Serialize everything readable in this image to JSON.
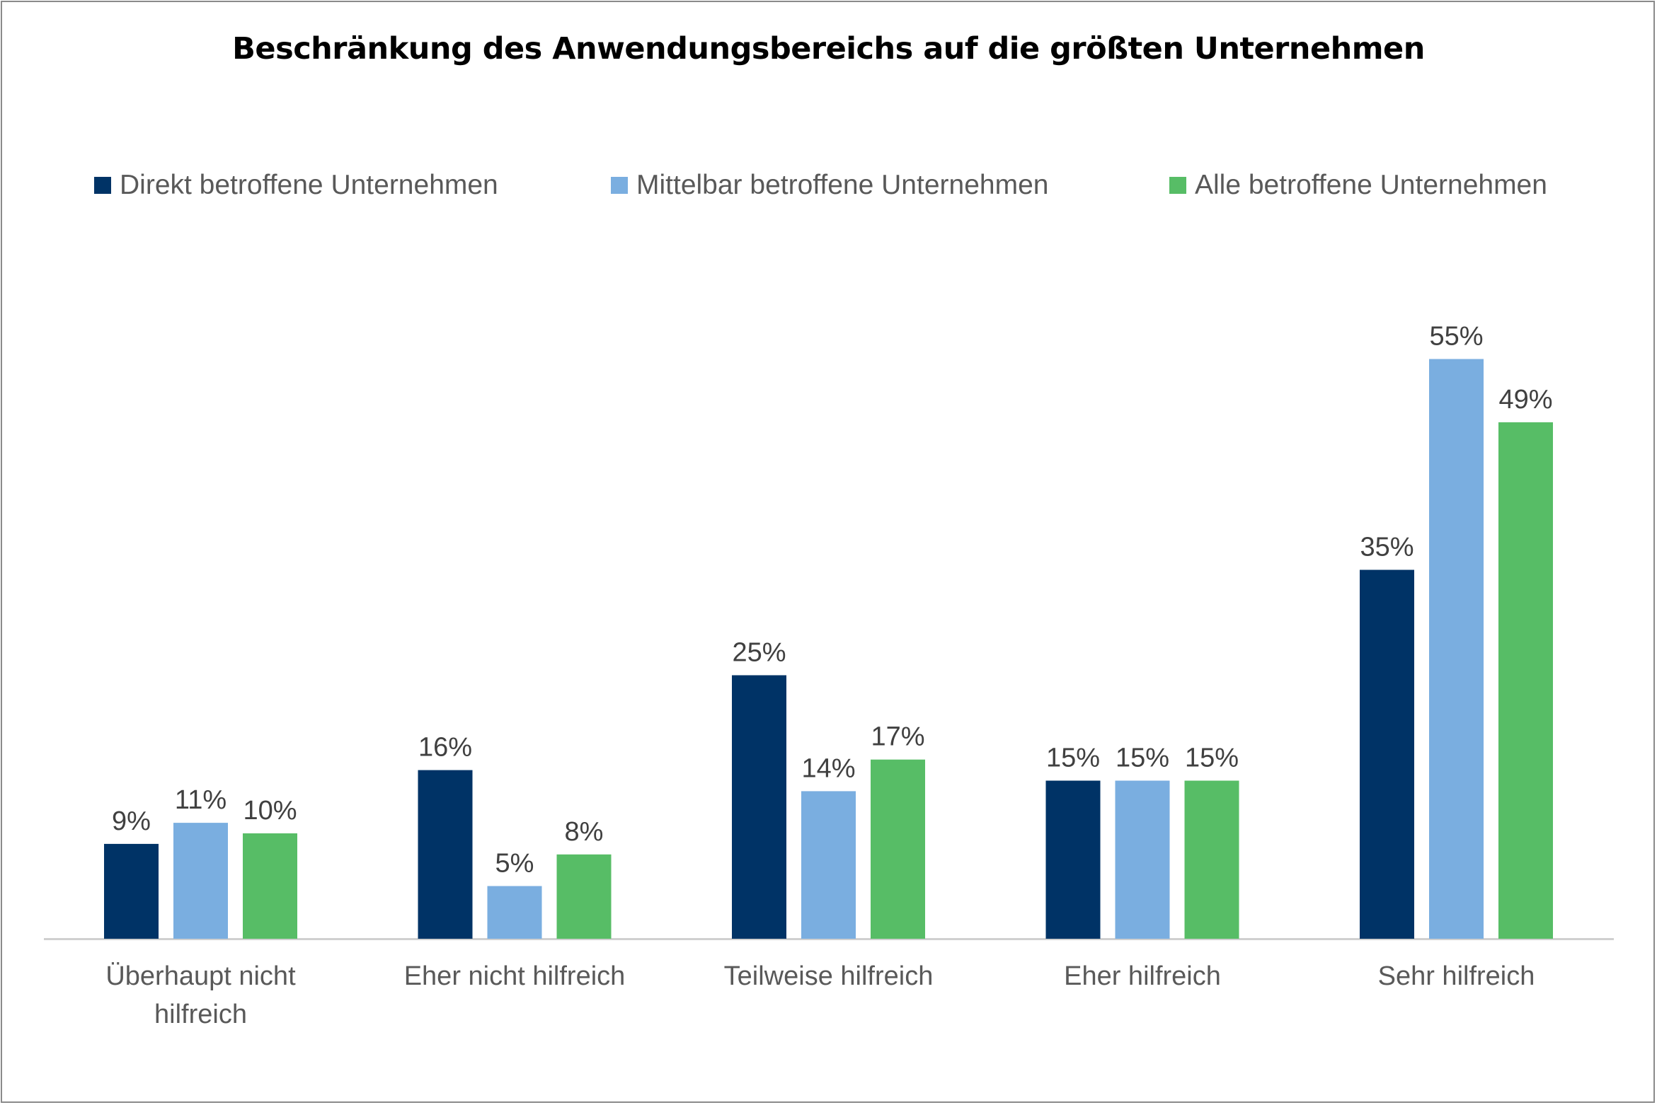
{
  "chart_data": {
    "type": "bar",
    "title": "Beschränkung des Anwendungsbereichs auf die größten Unternehmen",
    "categories": [
      [
        "Überhaupt nicht",
        "hilfreich"
      ],
      [
        "Eher nicht hilfreich"
      ],
      [
        "Teilweise hilfreich"
      ],
      [
        "Eher hilfreich"
      ],
      [
        "Sehr hilfreich"
      ]
    ],
    "series": [
      {
        "name": "Direkt betroffene Unternehmen",
        "color": "#003366",
        "values": [
          9,
          16,
          25,
          15,
          35
        ]
      },
      {
        "name": "Mittelbar betroffene Unternehmen",
        "color": "#7aaee0",
        "values": [
          11,
          5,
          14,
          15,
          55
        ]
      },
      {
        "name": "Alle betroffene Unternehmen",
        "color": "#57bd66",
        "values": [
          10,
          8,
          17,
          15,
          49
        ]
      }
    ],
    "value_suffix": "%",
    "xlabel": "",
    "ylabel": "",
    "ylim": [
      0,
      60
    ],
    "grid": false,
    "legend_position": "top"
  }
}
